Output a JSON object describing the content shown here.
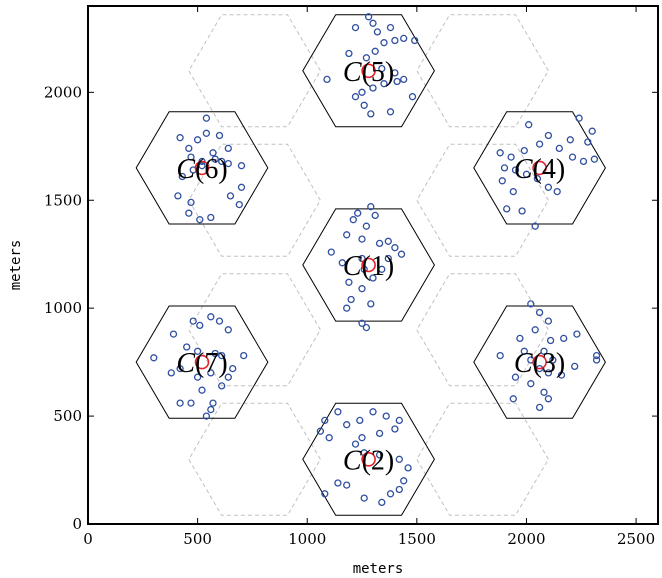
{
  "chart_data": {
    "type": "scatter",
    "xlabel": "meters",
    "ylabel": "meters",
    "xlim": [
      0,
      2600
    ],
    "ylim": [
      0,
      2400
    ],
    "xticks": [
      0,
      500,
      1000,
      1500,
      2000,
      2500
    ],
    "yticks": [
      0,
      500,
      1000,
      1500,
      2000
    ],
    "grid": false,
    "hex_radius": 300,
    "colors": {
      "users": "#2f4fa0",
      "base_station": "#e8202a",
      "cell_border": "#000000",
      "background_grid": "#c0c0c0"
    },
    "background_hex_centers": [
      [
        760,
        2100
      ],
      [
        1800,
        2100
      ],
      [
        760,
        1500
      ],
      [
        1800,
        1500
      ],
      [
        760,
        900
      ],
      [
        1800,
        900
      ],
      [
        760,
        300
      ],
      [
        1800,
        300
      ]
    ],
    "cells": [
      {
        "label_prefix": "C",
        "label_index": "(1)",
        "center": [
          1280,
          1200
        ],
        "users": [
          [
            1110,
            1260
          ],
          [
            1180,
            1340
          ],
          [
            1210,
            1410
          ],
          [
            1230,
            1440
          ],
          [
            1290,
            1470
          ],
          [
            1310,
            1430
          ],
          [
            1270,
            1380
          ],
          [
            1250,
            1320
          ],
          [
            1330,
            1300
          ],
          [
            1370,
            1310
          ],
          [
            1400,
            1280
          ],
          [
            1430,
            1250
          ],
          [
            1370,
            1230
          ],
          [
            1340,
            1180
          ],
          [
            1300,
            1140
          ],
          [
            1260,
            1180
          ],
          [
            1190,
            1120
          ],
          [
            1200,
            1040
          ],
          [
            1180,
            1000
          ],
          [
            1250,
            1090
          ],
          [
            1290,
            1020
          ],
          [
            1250,
            930
          ],
          [
            1270,
            910
          ],
          [
            1160,
            1210
          ],
          [
            1250,
            1230
          ]
        ]
      },
      {
        "label_prefix": "C",
        "label_index": "(2)",
        "center": [
          1280,
          300
        ],
        "users": [
          [
            1140,
            520
          ],
          [
            1080,
            480
          ],
          [
            1060,
            430
          ],
          [
            1100,
            400
          ],
          [
            1180,
            460
          ],
          [
            1240,
            480
          ],
          [
            1300,
            520
          ],
          [
            1360,
            500
          ],
          [
            1420,
            480
          ],
          [
            1400,
            440
          ],
          [
            1330,
            420
          ],
          [
            1250,
            400
          ],
          [
            1220,
            370
          ],
          [
            1260,
            330
          ],
          [
            1330,
            320
          ],
          [
            1420,
            300
          ],
          [
            1460,
            260
          ],
          [
            1440,
            200
          ],
          [
            1420,
            160
          ],
          [
            1380,
            140
          ],
          [
            1340,
            100
          ],
          [
            1260,
            120
          ],
          [
            1180,
            180
          ],
          [
            1140,
            190
          ],
          [
            1080,
            140
          ]
        ]
      },
      {
        "label_prefix": "C",
        "label_index": "(3)",
        "center": [
          2060,
          750
        ],
        "users": [
          [
            2020,
            1020
          ],
          [
            2060,
            980
          ],
          [
            2100,
            940
          ],
          [
            2040,
            900
          ],
          [
            1970,
            860
          ],
          [
            2110,
            850
          ],
          [
            2170,
            860
          ],
          [
            2230,
            880
          ],
          [
            2320,
            780
          ],
          [
            2320,
            760
          ],
          [
            2220,
            730
          ],
          [
            2160,
            690
          ],
          [
            2100,
            700
          ],
          [
            2060,
            720
          ],
          [
            2020,
            760
          ],
          [
            1990,
            800
          ],
          [
            1880,
            780
          ],
          [
            1950,
            680
          ],
          [
            2020,
            650
          ],
          [
            2080,
            610
          ],
          [
            2100,
            580
          ],
          [
            2060,
            540
          ],
          [
            1940,
            580
          ],
          [
            2120,
            760
          ],
          [
            2080,
            800
          ]
        ]
      },
      {
        "label_prefix": "C",
        "label_index": "(4)",
        "center": [
          2060,
          1650
        ],
        "users": [
          [
            2240,
            1880
          ],
          [
            2300,
            1820
          ],
          [
            2280,
            1770
          ],
          [
            2200,
            1780
          ],
          [
            2150,
            1740
          ],
          [
            2100,
            1800
          ],
          [
            2060,
            1760
          ],
          [
            2010,
            1850
          ],
          [
            1990,
            1730
          ],
          [
            1930,
            1700
          ],
          [
            1880,
            1720
          ],
          [
            1900,
            1650
          ],
          [
            1950,
            1640
          ],
          [
            2000,
            1620
          ],
          [
            2050,
            1600
          ],
          [
            2100,
            1560
          ],
          [
            2140,
            1540
          ],
          [
            1940,
            1540
          ],
          [
            1890,
            1590
          ],
          [
            1980,
            1450
          ],
          [
            1910,
            1460
          ],
          [
            2040,
            1380
          ],
          [
            2210,
            1700
          ],
          [
            2310,
            1690
          ],
          [
            2260,
            1680
          ]
        ]
      },
      {
        "label_prefix": "C",
        "label_index": "(5)",
        "center": [
          1280,
          2100
        ],
        "users": [
          [
            1280,
            2350
          ],
          [
            1300,
            2320
          ],
          [
            1220,
            2300
          ],
          [
            1320,
            2280
          ],
          [
            1380,
            2300
          ],
          [
            1440,
            2250
          ],
          [
            1490,
            2240
          ],
          [
            1400,
            2240
          ],
          [
            1350,
            2230
          ],
          [
            1310,
            2190
          ],
          [
            1270,
            2160
          ],
          [
            1190,
            2180
          ],
          [
            1340,
            2110
          ],
          [
            1400,
            2090
          ],
          [
            1440,
            2060
          ],
          [
            1410,
            2050
          ],
          [
            1350,
            2040
          ],
          [
            1300,
            2020
          ],
          [
            1250,
            2000
          ],
          [
            1220,
            1980
          ],
          [
            1260,
            1940
          ],
          [
            1290,
            1900
          ],
          [
            1380,
            1910
          ],
          [
            1480,
            1980
          ],
          [
            1090,
            2060
          ]
        ]
      },
      {
        "label_prefix": "C",
        "label_index": "(6)",
        "center": [
          520,
          1650
        ],
        "users": [
          [
            420,
            1790
          ],
          [
            500,
            1780
          ],
          [
            540,
            1810
          ],
          [
            600,
            1800
          ],
          [
            640,
            1740
          ],
          [
            570,
            1720
          ],
          [
            460,
            1740
          ],
          [
            470,
            1700
          ],
          [
            520,
            1680
          ],
          [
            480,
            1640
          ],
          [
            580,
            1690
          ],
          [
            610,
            1680
          ],
          [
            640,
            1670
          ],
          [
            700,
            1660
          ],
          [
            700,
            1560
          ],
          [
            650,
            1520
          ],
          [
            690,
            1480
          ],
          [
            560,
            1420
          ],
          [
            510,
            1410
          ],
          [
            460,
            1440
          ],
          [
            470,
            1490
          ],
          [
            410,
            1520
          ],
          [
            430,
            1610
          ],
          [
            540,
            1880
          ],
          [
            520,
            1660
          ]
        ]
      },
      {
        "label_prefix": "C",
        "label_index": "(7)",
        "center": [
          520,
          750
        ],
        "users": [
          [
            560,
            960
          ],
          [
            480,
            940
          ],
          [
            510,
            920
          ],
          [
            600,
            940
          ],
          [
            390,
            880
          ],
          [
            640,
            900
          ],
          [
            450,
            820
          ],
          [
            500,
            800
          ],
          [
            580,
            790
          ],
          [
            610,
            780
          ],
          [
            660,
            720
          ],
          [
            710,
            780
          ],
          [
            640,
            680
          ],
          [
            610,
            640
          ],
          [
            560,
            700
          ],
          [
            500,
            680
          ],
          [
            420,
            720
          ],
          [
            380,
            700
          ],
          [
            300,
            770
          ],
          [
            520,
            620
          ],
          [
            570,
            560
          ],
          [
            560,
            530
          ],
          [
            540,
            500
          ],
          [
            420,
            560
          ],
          [
            470,
            560
          ]
        ]
      }
    ]
  }
}
